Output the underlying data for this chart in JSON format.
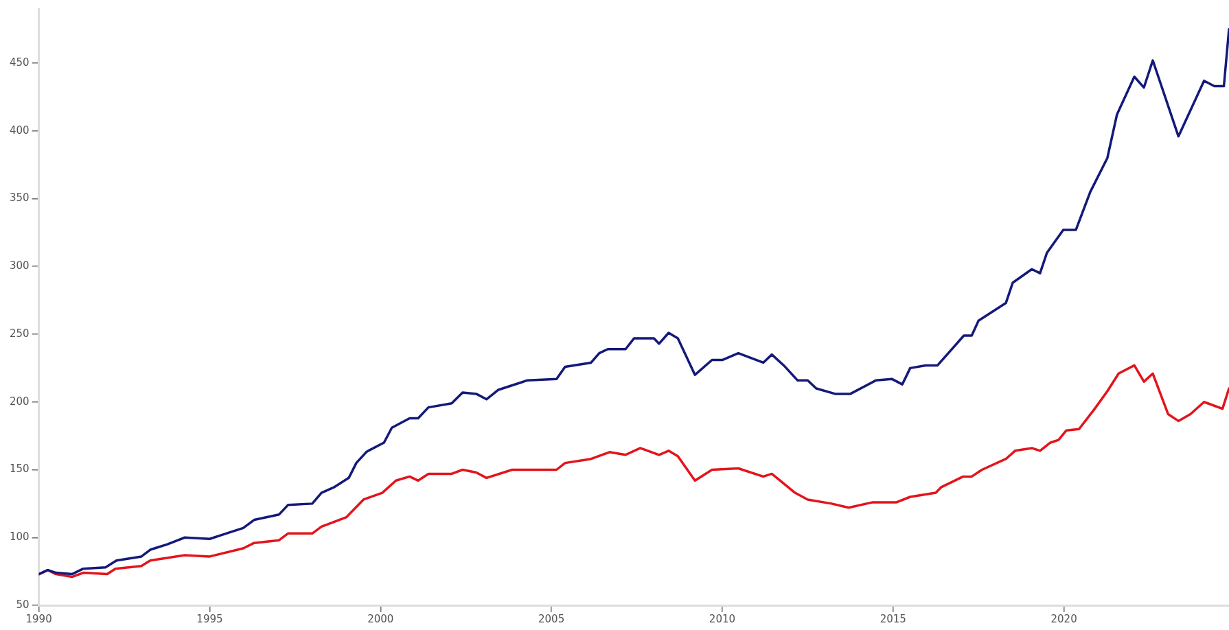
{
  "chart_data": {
    "type": "line",
    "xlim": [
      1990,
      2024.83
    ],
    "ylim": [
      50,
      490
    ],
    "xticks": [
      1990,
      1995,
      2000,
      2005,
      2010,
      2015,
      2020
    ],
    "yticks": [
      50,
      100,
      150,
      200,
      250,
      300,
      350,
      400,
      450
    ],
    "grid": false,
    "legend": false,
    "marker": "none",
    "line_style": "solid",
    "series": [
      {
        "color": "#14197a",
        "x": [
          1990,
          1990.26,
          1990.5,
          1990.97,
          1991.3,
          1991.95,
          1992.27,
          1993.0,
          1993.26,
          1993.76,
          1994.27,
          1995.0,
          1995.36,
          1995.98,
          1996.3,
          1997.03,
          1997.29,
          1998.0,
          1998.27,
          1998.63,
          1999.07,
          1999.29,
          1999.58,
          1999.64,
          2000.1,
          2000.33,
          2000.85,
          2001.1,
          2001.4,
          2002.08,
          2002.4,
          2002.8,
          2003.1,
          2003.45,
          2004.3,
          2005.15,
          2005.4,
          2006.16,
          2006.4,
          2006.65,
          2007.17,
          2007.42,
          2008.0,
          2008.15,
          2008.43,
          2008.7,
          2009.2,
          2009.7,
          2010.0,
          2010.47,
          2011.2,
          2011.45,
          2011.8,
          2012.2,
          2012.5,
          2012.75,
          2013.3,
          2013.75,
          2014.5,
          2014.96,
          2015.27,
          2015.5,
          2015.95,
          2016.3,
          2017.07,
          2017.3,
          2017.5,
          2018.3,
          2018.5,
          2019.06,
          2019.3,
          2019.5,
          2019.98,
          2020.35,
          2020.77,
          2021.27,
          2021.55,
          2022.06,
          2022.34,
          2022.6,
          2023.35,
          2024.1,
          2024.4,
          2024.68,
          2024.83
        ],
        "values": [
          73,
          76,
          74,
          73,
          77,
          78,
          83,
          86,
          91,
          95,
          100,
          99,
          102,
          107,
          113,
          117,
          124,
          125,
          133,
          137,
          144,
          155,
          163,
          164,
          170,
          181,
          188,
          188,
          196,
          199,
          207,
          206,
          202,
          209,
          216,
          217,
          226,
          229,
          236,
          239,
          239,
          247,
          247,
          243,
          251,
          247,
          220,
          231,
          231,
          236,
          229,
          235,
          227,
          216,
          216,
          210,
          206,
          206,
          216,
          217,
          213,
          225,
          227,
          227,
          249,
          249,
          260,
          273,
          288,
          298,
          295,
          310,
          327,
          327,
          355,
          380,
          412,
          440,
          432,
          452,
          396,
          437,
          433,
          433,
          475
        ]
      },
      {
        "color": "#e3141b",
        "x": [
          1990,
          1990.26,
          1990.5,
          1990.97,
          1991.3,
          1992.0,
          1992.24,
          1993.0,
          1993.26,
          1994.27,
          1995.0,
          1995.98,
          1996.3,
          1997.03,
          1997.29,
          1998.0,
          1998.27,
          1999.0,
          1999.5,
          2000.05,
          2000.45,
          2000.85,
          2001.1,
          2001.4,
          2002.08,
          2002.4,
          2002.8,
          2003.1,
          2003.85,
          2005.15,
          2005.4,
          2006.16,
          2006.7,
          2007.17,
          2007.6,
          2008.15,
          2008.43,
          2008.7,
          2009.2,
          2009.7,
          2010.47,
          2011.2,
          2011.45,
          2012.13,
          2012.5,
          2013.2,
          2013.7,
          2014.4,
          2015.1,
          2015.5,
          2016.25,
          2016.4,
          2017.05,
          2017.3,
          2017.6,
          2018.3,
          2018.57,
          2019.06,
          2019.3,
          2019.6,
          2019.84,
          2020.07,
          2020.44,
          2020.9,
          2021.27,
          2021.6,
          2022.06,
          2022.34,
          2022.6,
          2023.05,
          2023.35,
          2023.7,
          2024.1,
          2024.64,
          2024.83
        ],
        "values": [
          73,
          76,
          73,
          71,
          74,
          73,
          77,
          79,
          83,
          87,
          86,
          92,
          96,
          98,
          103,
          103,
          108,
          115,
          128,
          133,
          142,
          145,
          142,
          147,
          147,
          150,
          148,
          144,
          150,
          150,
          155,
          158,
          163,
          161,
          166,
          161,
          164,
          160,
          142,
          150,
          151,
          145,
          147,
          133,
          128,
          125,
          122,
          126,
          126,
          130,
          133,
          137,
          145,
          145,
          150,
          158,
          164,
          166,
          164,
          170,
          172,
          179,
          180,
          195,
          208,
          221,
          227,
          215,
          221,
          191,
          186,
          191,
          200,
          195,
          210
        ]
      }
    ]
  }
}
